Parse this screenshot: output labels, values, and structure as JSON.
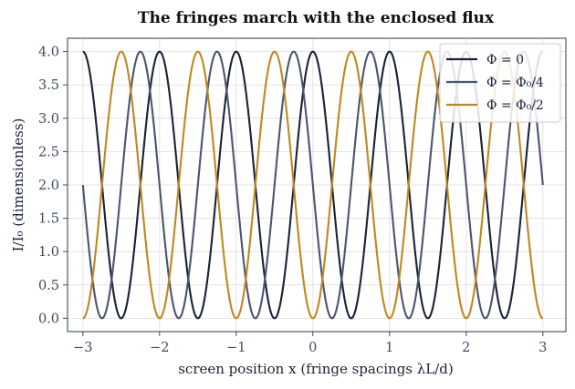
{
  "chart_data": {
    "type": "line",
    "title": "The fringes march with the enclosed flux",
    "xlabel": "screen position x (fringe spacings λL/d)",
    "ylabel": "I/I₀ (dimensionless)",
    "xlim": [
      -3.2,
      3.3
    ],
    "ylim": [
      -0.2,
      4.2
    ],
    "x_ticks": [
      "−3",
      "−2",
      "−1",
      "0",
      "1",
      "2",
      "3"
    ],
    "x_tick_values": [
      -3,
      -2,
      -1,
      0,
      1,
      2,
      3
    ],
    "y_ticks": [
      "0.0",
      "0.5",
      "1.0",
      "1.5",
      "2.0",
      "2.5",
      "3.0",
      "3.5",
      "4.0"
    ],
    "y_tick_values": [
      0,
      0.5,
      1,
      1.5,
      2,
      2.5,
      3,
      3.5,
      4
    ],
    "grid": true,
    "legend_position": "top-right",
    "function": "I/I0 = 2 + 2·cos(2π·x + 2π·Φ/Φ0), x from −3 to 3",
    "x_range": [
      -3,
      3
    ],
    "series": [
      {
        "name": "Φ = 0",
        "flux_fraction": 0,
        "color": "#1a2238",
        "x": [
          -3,
          -2.75,
          -2.5,
          -2.25,
          -2,
          -1.75,
          -1.5,
          -1.25,
          -1,
          -0.75,
          -0.5,
          -0.25,
          0,
          0.25,
          0.5,
          0.75,
          1,
          1.25,
          1.5,
          1.75,
          2,
          2.25,
          2.5,
          2.75,
          3
        ],
        "values": [
          4,
          2,
          0,
          2,
          4,
          2,
          0,
          2,
          4,
          2,
          0,
          2,
          4,
          2,
          0,
          2,
          4,
          2,
          0,
          2,
          4,
          2,
          0,
          2,
          4
        ]
      },
      {
        "name": "Φ = Φ₀/4",
        "flux_fraction": 0.25,
        "color": "#4a5570",
        "x": [
          -3,
          -2.75,
          -2.5,
          -2.25,
          -2,
          -1.75,
          -1.5,
          -1.25,
          -1,
          -0.75,
          -0.5,
          -0.25,
          0,
          0.25,
          0.5,
          0.75,
          1,
          1.25,
          1.5,
          1.75,
          2,
          2.25,
          2.5,
          2.75,
          3
        ],
        "values": [
          2,
          0,
          2,
          4,
          2,
          0,
          2,
          4,
          2,
          0,
          2,
          4,
          2,
          0,
          2,
          4,
          2,
          0,
          2,
          4,
          2,
          0,
          2,
          4,
          2
        ]
      },
      {
        "name": "Φ = Φ₀/2",
        "flux_fraction": 0.5,
        "color": "#c0871f",
        "x": [
          -3,
          -2.75,
          -2.5,
          -2.25,
          -2,
          -1.75,
          -1.5,
          -1.25,
          -1,
          -0.75,
          -0.5,
          -0.25,
          0,
          0.25,
          0.5,
          0.75,
          1,
          1.25,
          1.5,
          1.75,
          2,
          2.25,
          2.5,
          2.75,
          3
        ],
        "values": [
          0,
          2,
          4,
          2,
          0,
          2,
          4,
          2,
          0,
          2,
          4,
          2,
          0,
          2,
          4,
          2,
          0,
          2,
          4,
          2,
          0,
          2,
          4,
          2,
          0
        ]
      }
    ]
  }
}
